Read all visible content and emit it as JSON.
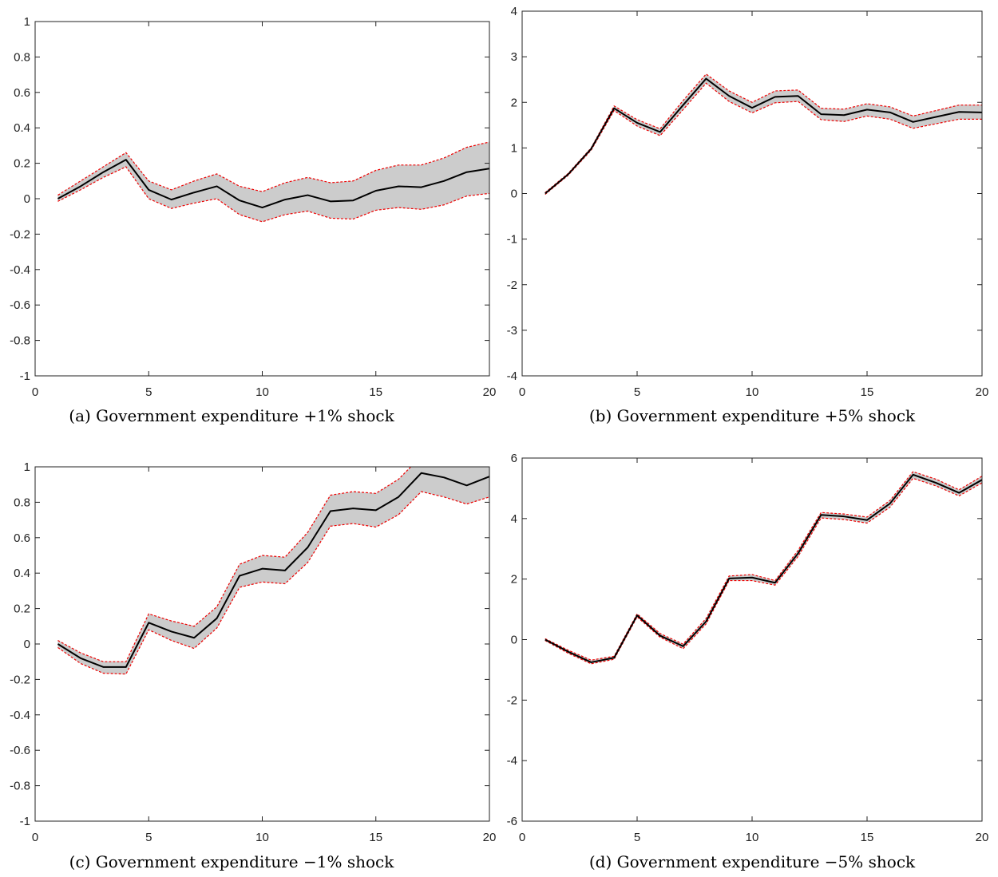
{
  "colors": {
    "band": "#cccccc",
    "bound": "#ee0000",
    "mean": "#000000"
  },
  "chart_data": [
    {
      "type": "area",
      "caption": "(a) Government expenditure +1% shock",
      "x": [
        1,
        2,
        3,
        4,
        5,
        6,
        7,
        8,
        9,
        10,
        11,
        12,
        13,
        14,
        15,
        16,
        17,
        18,
        19,
        20
      ],
      "xlim": [
        0,
        20
      ],
      "ylim": [
        -1,
        1
      ],
      "xticks": [
        0,
        5,
        10,
        15,
        20
      ],
      "yticks": [
        -1,
        -0.8,
        -0.6,
        -0.4,
        -0.2,
        0,
        0.2,
        0.4,
        0.6,
        0.8,
        1
      ],
      "ytick_labels": [
        "-1",
        "-0.8",
        "-0.6",
        "-0.4",
        "-0.2",
        "0",
        "0.2",
        "0.4",
        "0.6",
        "0.8",
        "1"
      ],
      "series": [
        {
          "role": "upper",
          "values": [
            0.02,
            0.1,
            0.18,
            0.26,
            0.1,
            0.05,
            0.1,
            0.14,
            0.07,
            0.04,
            0.09,
            0.12,
            0.09,
            0.1,
            0.16,
            0.19,
            0.19,
            0.23,
            0.29,
            0.32
          ]
        },
        {
          "role": "mean",
          "values": [
            0.0,
            0.07,
            0.15,
            0.22,
            0.05,
            -0.005,
            0.035,
            0.07,
            -0.01,
            -0.05,
            -0.005,
            0.02,
            -0.015,
            -0.01,
            0.045,
            0.07,
            0.065,
            0.1,
            0.15,
            0.17
          ]
        },
        {
          "role": "lower",
          "values": [
            -0.015,
            0.05,
            0.12,
            0.18,
            0.0,
            -0.055,
            -0.025,
            0.0,
            -0.09,
            -0.13,
            -0.09,
            -0.07,
            -0.11,
            -0.115,
            -0.065,
            -0.05,
            -0.06,
            -0.035,
            0.015,
            0.03
          ]
        }
      ]
    },
    {
      "type": "area",
      "caption": "(b) Government expenditure +5% shock",
      "x": [
        1,
        2,
        3,
        4,
        5,
        6,
        7,
        8,
        9,
        10,
        11,
        12,
        13,
        14,
        15,
        16,
        17,
        18,
        19,
        20
      ],
      "xlim": [
        0,
        20
      ],
      "ylim": [
        -4,
        4
      ],
      "xticks": [
        0,
        5,
        10,
        15,
        20
      ],
      "yticks": [
        -4,
        -3,
        -2,
        -1,
        0,
        1,
        2,
        3,
        4
      ],
      "ytick_labels": [
        "-4",
        "-3",
        "-2",
        "-1",
        "0",
        "1",
        "2",
        "3",
        "4"
      ],
      "series": [
        {
          "role": "upper",
          "values": [
            0.02,
            0.44,
            1.0,
            1.92,
            1.62,
            1.42,
            2.04,
            2.62,
            2.25,
            2.0,
            2.25,
            2.27,
            1.87,
            1.85,
            1.97,
            1.9,
            1.7,
            1.82,
            1.94,
            1.94
          ]
        },
        {
          "role": "mean",
          "values": [
            0.0,
            0.42,
            0.98,
            1.87,
            1.55,
            1.35,
            1.94,
            2.52,
            2.14,
            1.88,
            2.12,
            2.14,
            1.74,
            1.72,
            1.84,
            1.78,
            1.57,
            1.68,
            1.79,
            1.78
          ]
        },
        {
          "role": "lower",
          "values": [
            -0.02,
            0.4,
            0.95,
            1.82,
            1.48,
            1.27,
            1.84,
            2.42,
            2.02,
            1.77,
            1.99,
            2.02,
            1.62,
            1.58,
            1.7,
            1.63,
            1.43,
            1.53,
            1.63,
            1.63
          ]
        }
      ]
    },
    {
      "type": "area",
      "caption": "(c) Government expenditure −1% shock",
      "x": [
        1,
        2,
        3,
        4,
        5,
        6,
        7,
        8,
        9,
        10,
        11,
        12,
        13,
        14,
        15,
        16,
        17,
        18,
        19,
        20
      ],
      "xlim": [
        0,
        20
      ],
      "ylim": [
        -1,
        1
      ],
      "xticks": [
        0,
        5,
        10,
        15,
        20
      ],
      "yticks": [
        -1,
        -0.8,
        -0.6,
        -0.4,
        -0.2,
        0,
        0.2,
        0.4,
        0.6,
        0.8,
        1
      ],
      "ytick_labels": [
        "-1",
        "-0.8",
        "-0.6",
        "-0.4",
        "-0.2",
        "0",
        "0.2",
        "0.4",
        "0.6",
        "0.8",
        "1"
      ],
      "series": [
        {
          "role": "upper",
          "values": [
            0.02,
            -0.05,
            -0.1,
            -0.1,
            0.17,
            0.13,
            0.1,
            0.21,
            0.45,
            0.5,
            0.49,
            0.63,
            0.84,
            0.86,
            0.85,
            0.93,
            1.06,
            1.06,
            1.01,
            1.06
          ]
        },
        {
          "role": "mean",
          "values": [
            0.0,
            -0.08,
            -0.13,
            -0.13,
            0.12,
            0.07,
            0.035,
            0.145,
            0.385,
            0.425,
            0.415,
            0.545,
            0.75,
            0.765,
            0.755,
            0.83,
            0.965,
            0.94,
            0.895,
            0.945
          ]
        },
        {
          "role": "lower",
          "values": [
            -0.02,
            -0.11,
            -0.165,
            -0.17,
            0.08,
            0.02,
            -0.025,
            0.09,
            0.32,
            0.35,
            0.34,
            0.46,
            0.665,
            0.68,
            0.66,
            0.73,
            0.86,
            0.83,
            0.79,
            0.83
          ]
        }
      ]
    },
    {
      "type": "area",
      "caption": "(d) Government expenditure −5% shock",
      "x": [
        1,
        2,
        3,
        4,
        5,
        6,
        7,
        8,
        9,
        10,
        11,
        12,
        13,
        14,
        15,
        16,
        17,
        18,
        19,
        20
      ],
      "xlim": [
        0,
        20
      ],
      "ylim": [
        -6,
        6
      ],
      "xticks": [
        0,
        5,
        10,
        15,
        20
      ],
      "yticks": [
        -6,
        -4,
        -2,
        0,
        2,
        4,
        6
      ],
      "ytick_labels": [
        "-6",
        "-4",
        "-2",
        "0",
        "2",
        "4",
        "6"
      ],
      "series": [
        {
          "role": "upper",
          "values": [
            0.03,
            -0.35,
            -0.68,
            -0.55,
            0.85,
            0.2,
            -0.15,
            0.7,
            2.1,
            2.15,
            1.95,
            2.95,
            4.2,
            4.15,
            4.05,
            4.6,
            5.55,
            5.3,
            4.95,
            5.4
          ]
        },
        {
          "role": "mean",
          "values": [
            0.0,
            -0.4,
            -0.75,
            -0.6,
            0.8,
            0.13,
            -0.22,
            0.6,
            2.02,
            2.05,
            1.88,
            2.85,
            4.12,
            4.07,
            3.95,
            4.5,
            5.45,
            5.18,
            4.85,
            5.28
          ]
        },
        {
          "role": "lower",
          "values": [
            -0.03,
            -0.45,
            -0.8,
            -0.65,
            0.75,
            0.08,
            -0.3,
            0.52,
            1.95,
            1.95,
            1.8,
            2.75,
            4.02,
            3.97,
            3.85,
            4.38,
            5.33,
            5.08,
            4.75,
            5.18
          ]
        }
      ]
    }
  ]
}
